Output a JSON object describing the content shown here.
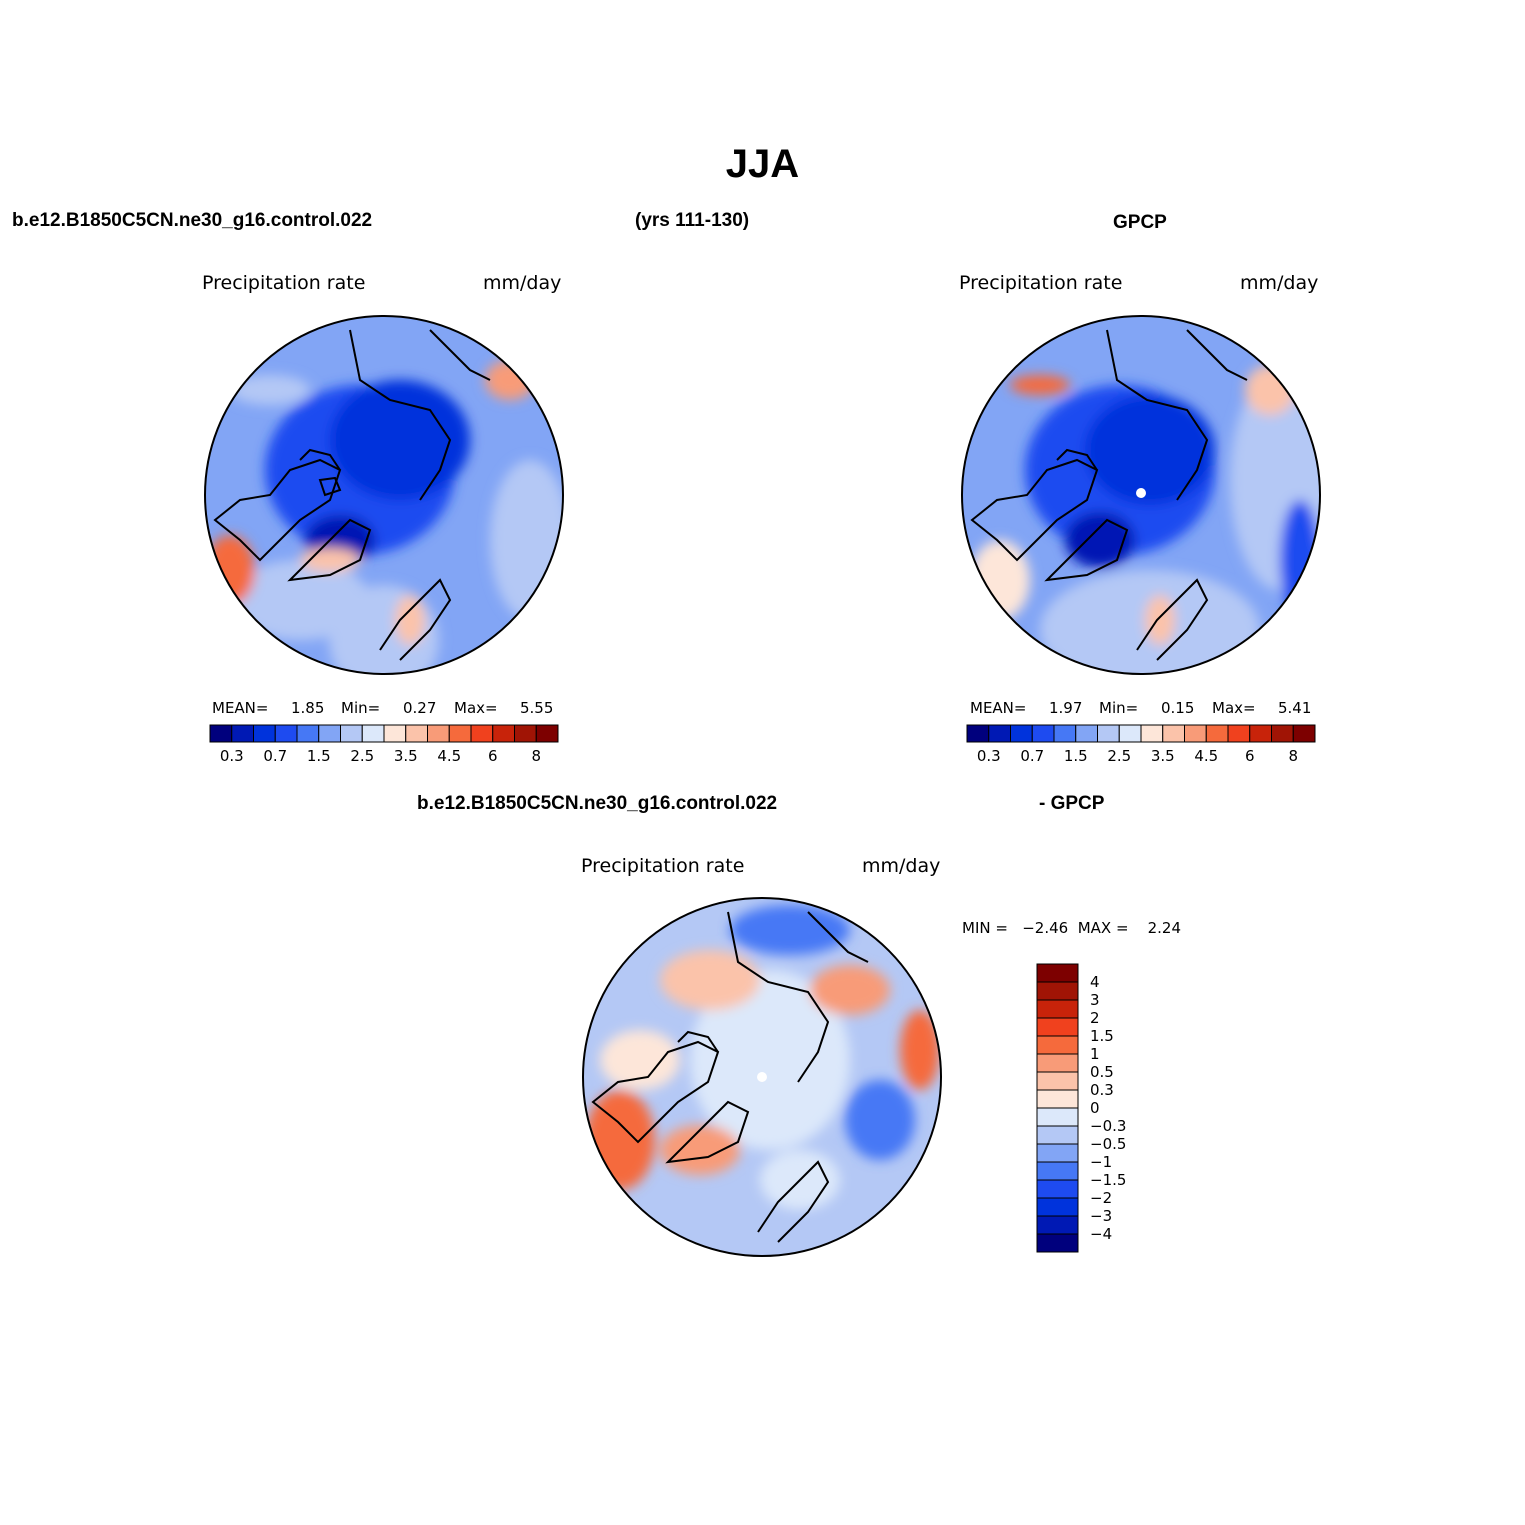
{
  "title": "JJA",
  "headers": {
    "top_left_case": "b.e12.B1850C5CN.ne30_g16.control.022",
    "years": "(yrs 111-130)",
    "top_right_obs": "GPCP",
    "diff_case": "b.e12.B1850C5CN.ne30_g16.control.022",
    "diff_obs": "- GPCP"
  },
  "panels": {
    "model": {
      "left_label": "Precipitation  rate",
      "right_label": "mm/day",
      "mean_label": "MEAN=",
      "mean": "1.85",
      "min_label": "Min=",
      "min": "0.27",
      "max_label": "Max=",
      "max": "5.55"
    },
    "obs": {
      "left_label": "Precipitation  rate",
      "right_label": "mm/day",
      "mean_label": "MEAN=",
      "mean": "1.97",
      "min_label": "Min=",
      "min": "0.15",
      "max_label": "Max=",
      "max": "5.41"
    },
    "diff": {
      "left_label": "Precipitation  rate",
      "right_label": "mm/day",
      "minmax_text": "MIN =   −2.46  MAX =    2.24"
    }
  },
  "colorbar_h": {
    "colors": [
      "#00007d",
      "#0019b4",
      "#0033dc",
      "#1e4bf0",
      "#4678f5",
      "#82a5f5",
      "#b4c8f5",
      "#dce8fa",
      "#fde6d9",
      "#fbc3aa",
      "#f89b78",
      "#f56a3c",
      "#f0411e",
      "#c8230a",
      "#a01405",
      "#7d0000"
    ],
    "tick_labels": [
      "0.3",
      "0.7",
      "1.5",
      "2.5",
      "3.5",
      "4.5",
      "6",
      "8"
    ]
  },
  "colorbar_v": {
    "colors": [
      "#7d0000",
      "#a01405",
      "#c8230a",
      "#f0411e",
      "#f56a3c",
      "#f89b78",
      "#fbc3aa",
      "#fde6d9",
      "#dce8fa",
      "#b4c8f5",
      "#82a5f5",
      "#4678f5",
      "#1e4bf0",
      "#0033dc",
      "#0019b4",
      "#00007d"
    ],
    "tick_labels": [
      "4",
      "3",
      "2",
      "1.5",
      "1",
      "0.5",
      "0.3",
      "0",
      "−0.3",
      "−0.5",
      "−1",
      "−1.5",
      "−2",
      "−3",
      "−4"
    ]
  }
}
